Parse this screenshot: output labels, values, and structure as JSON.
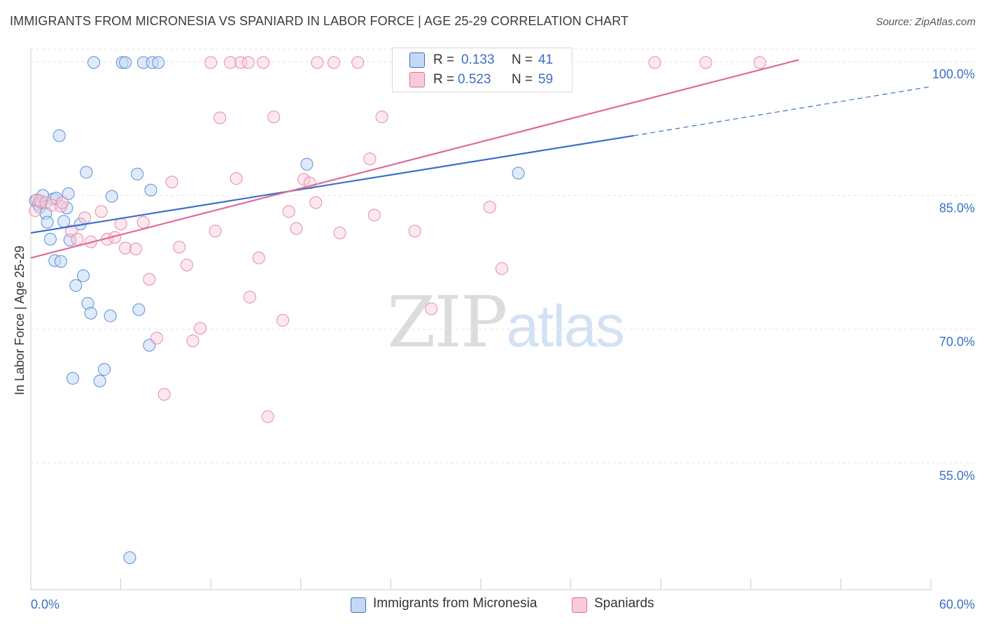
{
  "title": "IMMIGRANTS FROM MICRONESIA VS SPANIARD IN LABOR FORCE | AGE 25-29 CORRELATION CHART",
  "source": "Source: ZipAtlas.com",
  "watermark": {
    "zip": "ZIP",
    "atlas": "atlas"
  },
  "legend_top": {
    "r_label": "R =",
    "n_label": "N =",
    "series1": {
      "r": "0.133",
      "n": "41"
    },
    "series2": {
      "r": "0.523",
      "n": "59"
    }
  },
  "colors": {
    "blue": "#3b6fc7",
    "pink": "#e06b95",
    "blue_fill": "#c4d9f5",
    "pink_fill": "#f9cbd8"
  },
  "chart_data": {
    "type": "scatter",
    "title": "IMMIGRANTS FROM MICRONESIA VS SPANIARD IN LABOR FORCE | AGE 25-29 CORRELATION CHART",
    "xlabel": "",
    "ylabel": "In Labor Force | Age 25-29",
    "xlim": [
      0,
      60
    ],
    "ylim": [
      40.8,
      101.5
    ],
    "x_tick_labels": [
      "0.0%",
      "60.0%"
    ],
    "y_ticks": [
      55,
      70,
      85,
      100
    ],
    "y_tick_labels": [
      "55.0%",
      "70.0%",
      "85.0%",
      "100.0%"
    ],
    "series": [
      {
        "name": "Immigrants from Micronesia",
        "r": 0.133,
        "n": 41,
        "trend": {
          "x0": 0,
          "y0": 80.8,
          "x1": 40.2,
          "y1": 91.7,
          "x_dash_end": 60,
          "y_dash_end": 97.2
        },
        "points": [
          [
            0.3,
            84.4
          ],
          [
            0.5,
            84.0
          ],
          [
            0.6,
            83.7
          ],
          [
            0.7,
            84.2
          ],
          [
            0.8,
            85.0
          ],
          [
            1.0,
            83.0
          ],
          [
            1.1,
            82.0
          ],
          [
            1.3,
            80.1
          ],
          [
            1.5,
            84.6
          ],
          [
            1.6,
            77.7
          ],
          [
            1.7,
            84.7
          ],
          [
            1.9,
            91.7
          ],
          [
            2.0,
            77.6
          ],
          [
            2.2,
            82.1
          ],
          [
            2.4,
            83.6
          ],
          [
            2.5,
            85.2
          ],
          [
            2.6,
            80.0
          ],
          [
            2.8,
            64.5
          ],
          [
            3.0,
            74.9
          ],
          [
            3.3,
            81.8
          ],
          [
            3.5,
            76.0
          ],
          [
            3.7,
            87.6
          ],
          [
            3.8,
            72.9
          ],
          [
            4.0,
            71.8
          ],
          [
            4.2,
            99.9
          ],
          [
            4.6,
            64.2
          ],
          [
            4.9,
            65.5
          ],
          [
            5.3,
            71.5
          ],
          [
            5.4,
            84.9
          ],
          [
            6.1,
            99.9
          ],
          [
            6.3,
            99.9
          ],
          [
            7.1,
            87.4
          ],
          [
            7.2,
            72.2
          ],
          [
            7.5,
            99.9
          ],
          [
            7.9,
            68.2
          ],
          [
            8.0,
            85.6
          ],
          [
            8.1,
            99.9
          ],
          [
            8.5,
            99.9
          ],
          [
            6.6,
            44.4
          ],
          [
            18.4,
            88.5
          ],
          [
            32.5,
            87.5
          ]
        ]
      },
      {
        "name": "Spaniards",
        "r": 0.523,
        "n": 59,
        "trend": {
          "x0": 0,
          "y0": 78.0,
          "x1": 51.2,
          "y1": 100.2
        },
        "points": [
          [
            0.3,
            83.3
          ],
          [
            0.4,
            84.5
          ],
          [
            0.6,
            84.4
          ],
          [
            1.0,
            84.2
          ],
          [
            1.4,
            83.9
          ],
          [
            2.0,
            83.8
          ],
          [
            2.1,
            84.2
          ],
          [
            2.7,
            81.0
          ],
          [
            3.1,
            80.1
          ],
          [
            3.6,
            82.5
          ],
          [
            4.0,
            79.8
          ],
          [
            4.7,
            83.2
          ],
          [
            5.1,
            80.1
          ],
          [
            5.6,
            80.3
          ],
          [
            6.0,
            81.8
          ],
          [
            6.3,
            79.1
          ],
          [
            7.0,
            79.0
          ],
          [
            7.5,
            82.0
          ],
          [
            7.9,
            75.6
          ],
          [
            8.4,
            69.0
          ],
          [
            8.9,
            62.7
          ],
          [
            9.4,
            86.5
          ],
          [
            9.9,
            79.2
          ],
          [
            10.4,
            77.2
          ],
          [
            10.8,
            68.7
          ],
          [
            11.3,
            70.1
          ],
          [
            12.0,
            99.9
          ],
          [
            12.3,
            81.0
          ],
          [
            12.6,
            93.7
          ],
          [
            13.3,
            99.9
          ],
          [
            13.7,
            86.9
          ],
          [
            14.0,
            99.9
          ],
          [
            14.5,
            99.9
          ],
          [
            14.6,
            73.6
          ],
          [
            15.2,
            78.0
          ],
          [
            15.5,
            99.9
          ],
          [
            15.8,
            60.2
          ],
          [
            16.2,
            93.8
          ],
          [
            16.8,
            71.0
          ],
          [
            17.2,
            83.2
          ],
          [
            17.7,
            81.3
          ],
          [
            18.2,
            86.8
          ],
          [
            18.6,
            86.4
          ],
          [
            19.0,
            84.2
          ],
          [
            19.1,
            99.9
          ],
          [
            20.2,
            99.9
          ],
          [
            20.6,
            80.8
          ],
          [
            21.8,
            99.9
          ],
          [
            22.6,
            89.1
          ],
          [
            22.9,
            82.8
          ],
          [
            23.4,
            93.8
          ],
          [
            24.5,
            99.9
          ],
          [
            25.6,
            81.0
          ],
          [
            26.7,
            72.3
          ],
          [
            30.6,
            83.7
          ],
          [
            31.4,
            76.8
          ],
          [
            41.6,
            99.9
          ],
          [
            45.0,
            99.9
          ],
          [
            48.6,
            99.9
          ]
        ]
      }
    ]
  },
  "legend_bottom": {
    "series1": "Immigrants from Micronesia",
    "series2": "Spaniards"
  }
}
